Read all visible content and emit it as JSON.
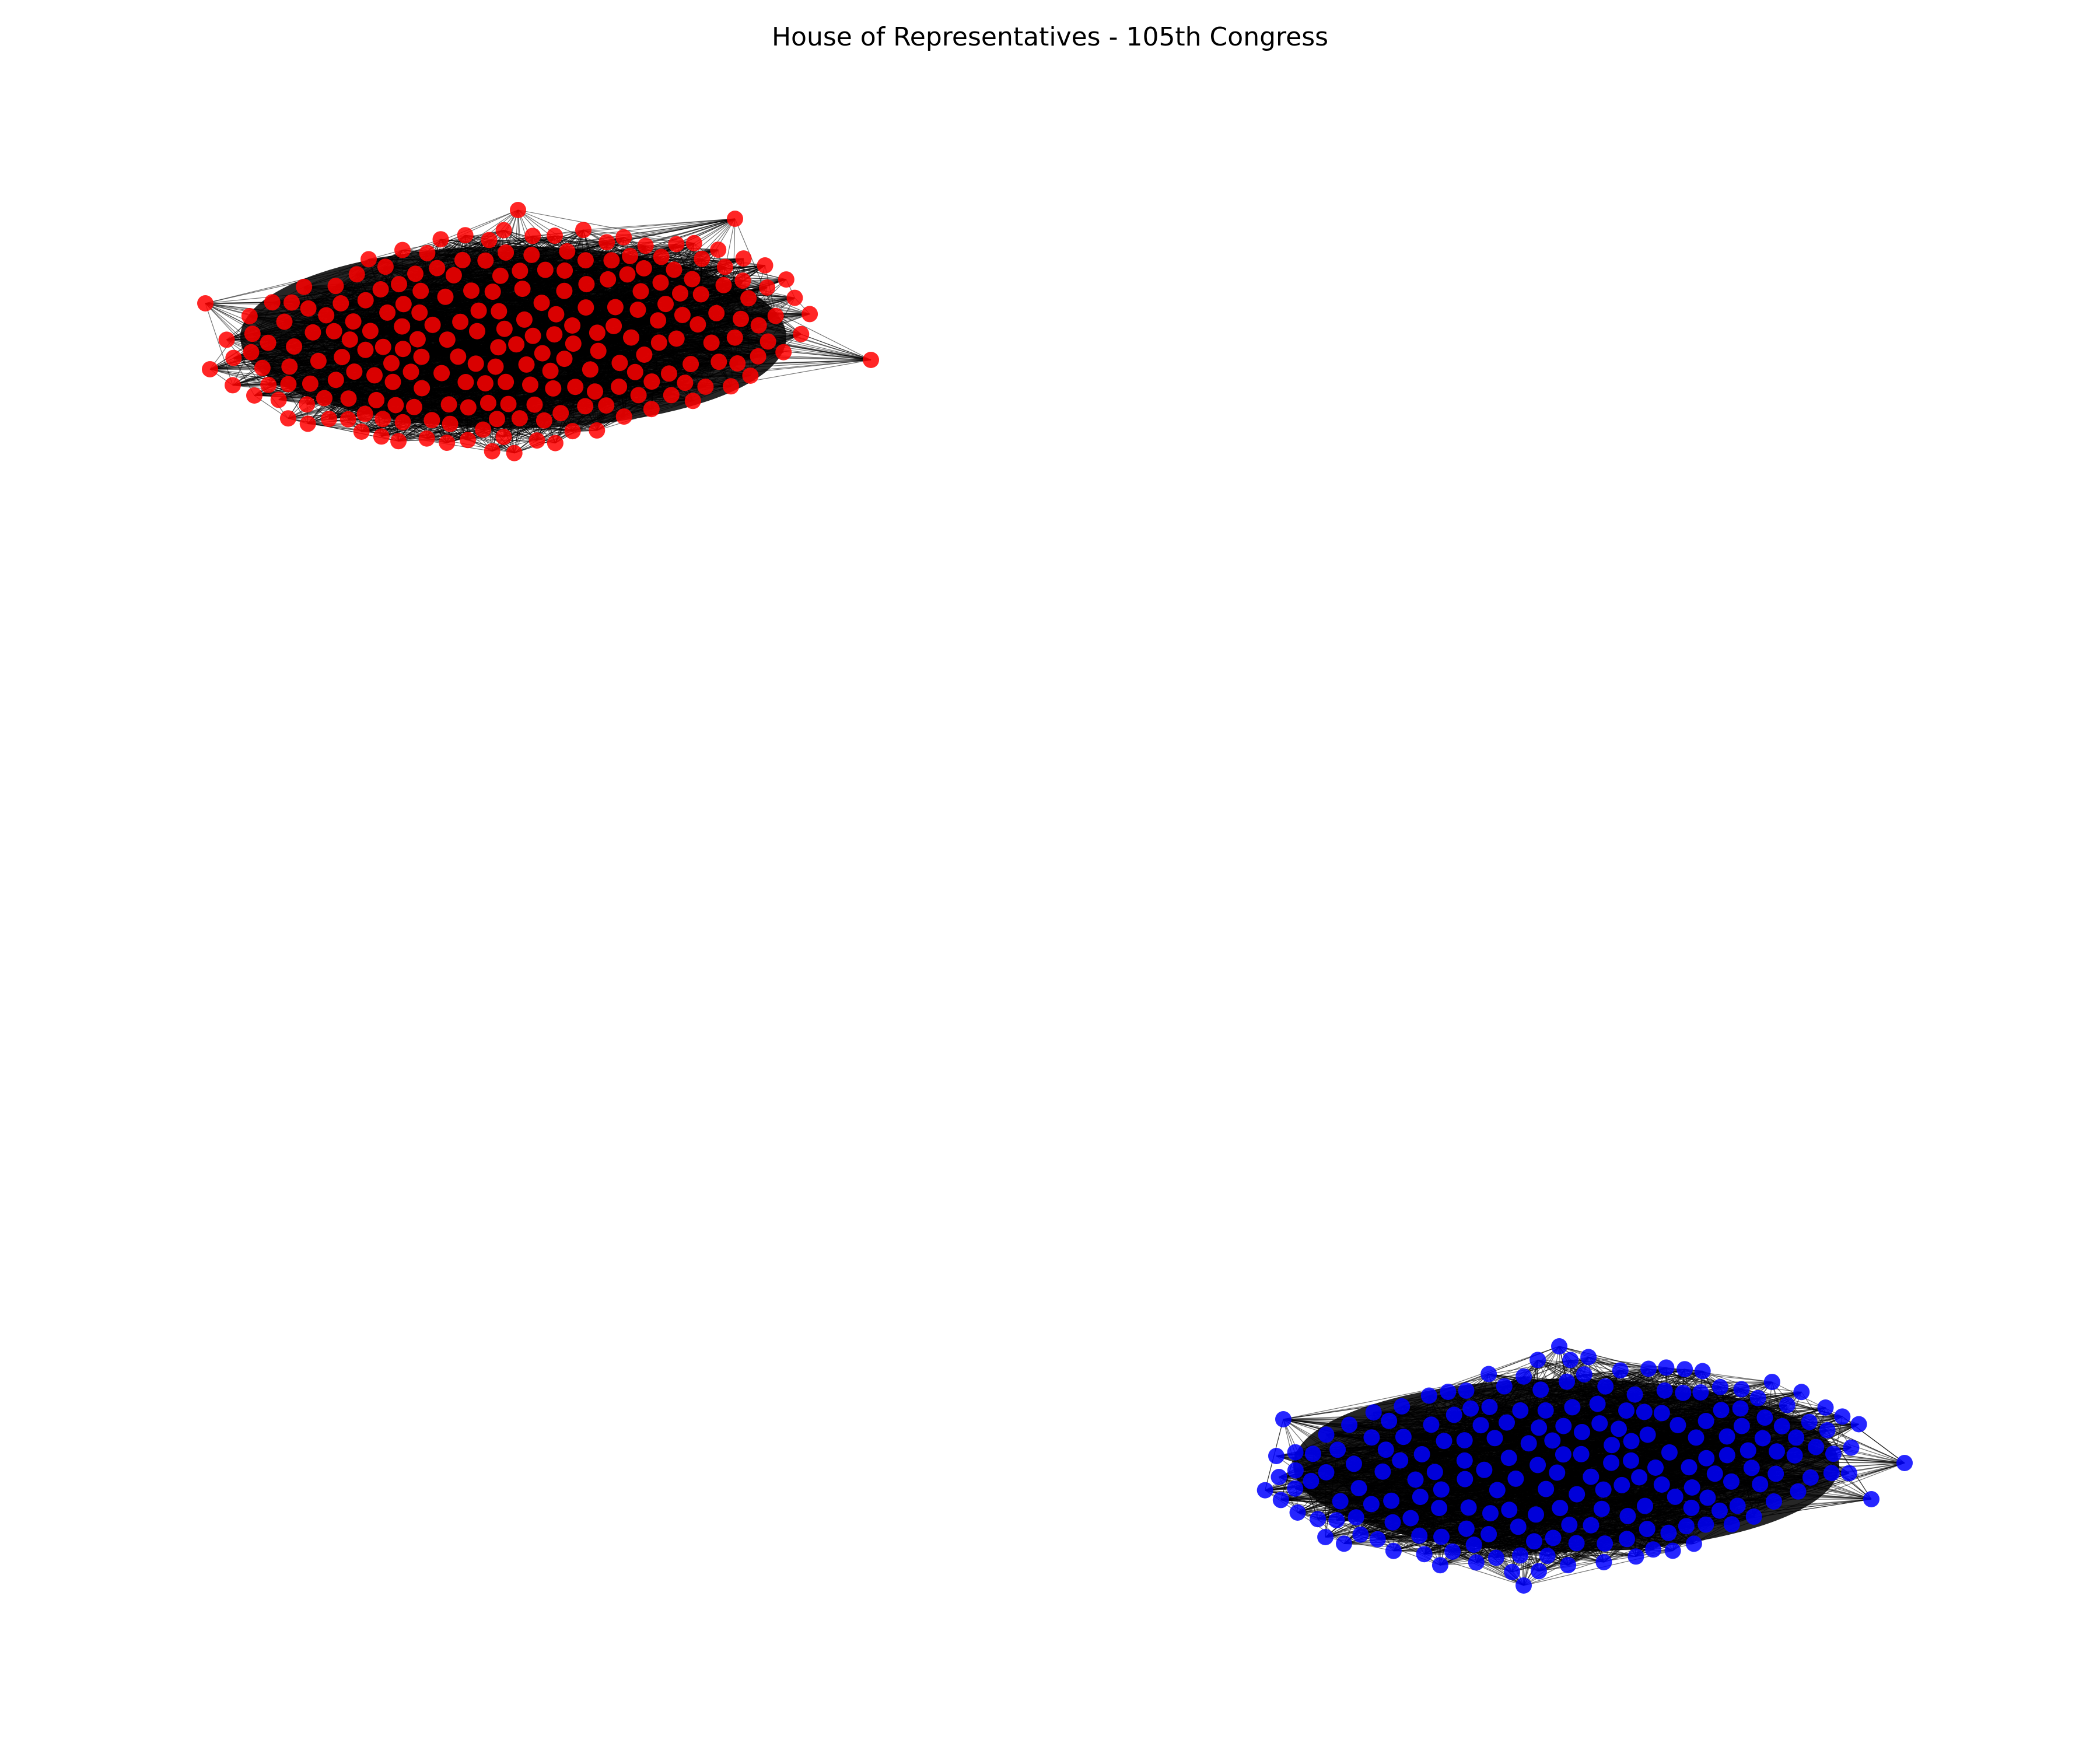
{
  "title": "House of Representatives - 105th Congress",
  "graph": {
    "kind": "network",
    "edge_color": "#000000",
    "clusters": [
      {
        "name_visible": false,
        "node_color": "#ff0000",
        "node_count_estimate": 228
      },
      {
        "name_visible": false,
        "node_color": "#0000ff",
        "node_count_estimate": 206
      }
    ]
  }
}
